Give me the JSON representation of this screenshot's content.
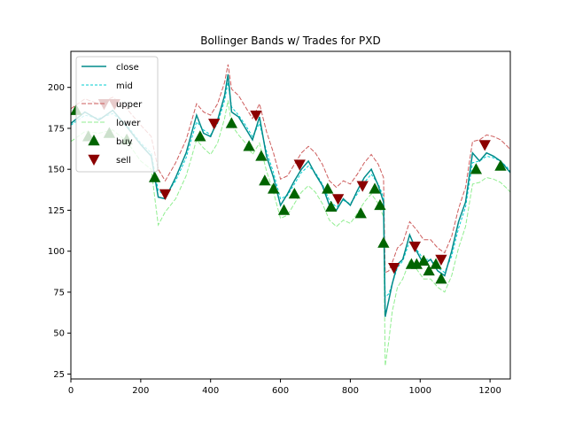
{
  "chart_data": {
    "type": "line",
    "title": "Bollinger Bands w/ Trades for PXD",
    "xlabel": "",
    "ylabel": "",
    "xlim": [
      0,
      1258
    ],
    "ylim": [
      22,
      222
    ],
    "xticks": [
      0,
      200,
      400,
      600,
      800,
      1000,
      1200
    ],
    "yticks": [
      25,
      50,
      75,
      100,
      125,
      150,
      175,
      200
    ],
    "grid": false,
    "legend_position": "top-left",
    "series": [
      {
        "name": "close",
        "style": "solid",
        "color": "#008b8b",
        "x": [
          0,
          40,
          80,
          120,
          160,
          200,
          230,
          250,
          270,
          300,
          330,
          360,
          380,
          400,
          420,
          440,
          450,
          460,
          480,
          500,
          520,
          540,
          560,
          580,
          600,
          620,
          640,
          660,
          680,
          700,
          720,
          740,
          760,
          780,
          800,
          820,
          840,
          860,
          880,
          895,
          900,
          910,
          920,
          935,
          950,
          970,
          990,
          1010,
          1030,
          1050,
          1070,
          1090,
          1110,
          1130,
          1150,
          1170,
          1190,
          1210,
          1230,
          1250,
          1258
        ],
        "y": [
          178,
          185,
          180,
          186,
          176,
          165,
          158,
          133,
          132,
          145,
          160,
          183,
          172,
          170,
          180,
          195,
          208,
          185,
          182,
          175,
          168,
          182,
          158,
          145,
          128,
          135,
          143,
          150,
          155,
          147,
          140,
          128,
          125,
          132,
          128,
          137,
          145,
          150,
          140,
          130,
          60,
          70,
          80,
          92,
          95,
          110,
          100,
          92,
          95,
          88,
          85,
          100,
          118,
          130,
          160,
          155,
          160,
          158,
          155,
          150,
          148
        ]
      },
      {
        "name": "mid",
        "style": "dashed",
        "color": "#00ced1",
        "x": [
          0,
          40,
          80,
          120,
          160,
          200,
          230,
          250,
          270,
          300,
          330,
          360,
          380,
          400,
          420,
          440,
          450,
          460,
          480,
          500,
          520,
          540,
          560,
          580,
          600,
          620,
          640,
          660,
          680,
          700,
          720,
          740,
          760,
          780,
          800,
          820,
          840,
          860,
          880,
          895,
          900,
          910,
          920,
          935,
          950,
          970,
          990,
          1010,
          1030,
          1050,
          1070,
          1090,
          1110,
          1130,
          1150,
          1170,
          1190,
          1210,
          1230,
          1250,
          1258
        ],
        "y": [
          177,
          183,
          181,
          184,
          177,
          166,
          160,
          137,
          134,
          143,
          157,
          179,
          174,
          171,
          178,
          192,
          203,
          188,
          183,
          177,
          170,
          178,
          161,
          148,
          132,
          134,
          141,
          148,
          152,
          148,
          141,
          131,
          127,
          131,
          129,
          135,
          142,
          147,
          141,
          133,
          72,
          74,
          80,
          90,
          94,
          106,
          101,
          95,
          95,
          90,
          87,
          97,
          114,
          127,
          154,
          155,
          158,
          157,
          155,
          151,
          149
        ]
      },
      {
        "name": "upper",
        "style": "dashed",
        "color": "#cd5c5c",
        "x": [
          0,
          40,
          80,
          120,
          160,
          200,
          230,
          250,
          270,
          300,
          330,
          360,
          380,
          400,
          420,
          440,
          450,
          460,
          480,
          500,
          520,
          540,
          560,
          580,
          600,
          620,
          640,
          660,
          680,
          700,
          720,
          740,
          760,
          780,
          800,
          820,
          840,
          860,
          880,
          895,
          900,
          910,
          920,
          935,
          950,
          970,
          990,
          1010,
          1030,
          1050,
          1070,
          1090,
          1110,
          1130,
          1150,
          1170,
          1190,
          1210,
          1230,
          1250,
          1258
        ],
        "y": [
          187,
          193,
          190,
          194,
          187,
          177,
          170,
          150,
          143,
          154,
          168,
          190,
          185,
          183,
          190,
          203,
          214,
          199,
          195,
          188,
          181,
          190,
          173,
          160,
          144,
          146,
          153,
          160,
          164,
          160,
          153,
          143,
          139,
          143,
          141,
          147,
          154,
          159,
          153,
          145,
          87,
          88,
          93,
          102,
          105,
          118,
          113,
          107,
          107,
          102,
          99,
          109,
          126,
          139,
          167,
          168,
          171,
          170,
          168,
          164,
          162
        ]
      },
      {
        "name": "lower",
        "style": "dashed",
        "color": "#90ee90",
        "x": [
          0,
          40,
          80,
          120,
          160,
          200,
          230,
          250,
          270,
          300,
          330,
          360,
          380,
          400,
          420,
          440,
          450,
          460,
          480,
          500,
          520,
          540,
          560,
          580,
          600,
          620,
          640,
          660,
          680,
          700,
          720,
          740,
          760,
          780,
          800,
          820,
          840,
          860,
          880,
          895,
          900,
          910,
          920,
          935,
          950,
          970,
          990,
          1010,
          1030,
          1050,
          1070,
          1090,
          1110,
          1130,
          1150,
          1170,
          1190,
          1210,
          1230,
          1250,
          1258
        ],
        "y": [
          167,
          173,
          172,
          174,
          167,
          155,
          150,
          116,
          124,
          132,
          146,
          168,
          163,
          159,
          166,
          181,
          192,
          177,
          171,
          166,
          159,
          166,
          149,
          136,
          120,
          122,
          129,
          136,
          140,
          136,
          129,
          119,
          115,
          119,
          117,
          123,
          130,
          135,
          129,
          121,
          30,
          45,
          63,
          78,
          83,
          94,
          89,
          83,
          83,
          78,
          75,
          85,
          102,
          115,
          141,
          142,
          145,
          144,
          142,
          138,
          136
        ]
      }
    ],
    "buy": {
      "name": "buy",
      "color": "#006400",
      "x": [
        15,
        50,
        110,
        160,
        240,
        370,
        460,
        510,
        545,
        555,
        580,
        610,
        640,
        735,
        745,
        830,
        870,
        885,
        895,
        975,
        990,
        1010,
        1025,
        1045,
        1060,
        1160,
        1230
      ],
      "y": [
        186,
        170,
        172,
        168,
        145,
        170,
        178,
        164,
        158,
        143,
        138,
        125,
        135,
        138,
        127,
        123,
        138,
        128,
        105,
        92,
        92,
        94,
        88,
        92,
        83,
        150,
        152
      ]
    },
    "sell": {
      "name": "sell",
      "color": "#8b0000",
      "x": [
        95,
        125,
        270,
        410,
        530,
        655,
        765,
        835,
        925,
        985,
        1060,
        1185
      ],
      "y": [
        190,
        190,
        135,
        178,
        183,
        153,
        132,
        140,
        90,
        103,
        95,
        165
      ]
    }
  }
}
